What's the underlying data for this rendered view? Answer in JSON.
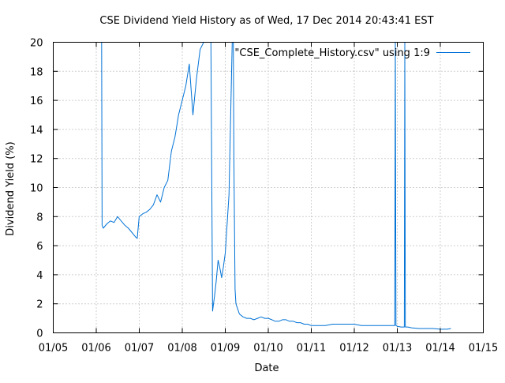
{
  "chart_data": {
    "type": "line",
    "title": "CSE Dividend Yield History as of Wed, 17 Dec 2014 20:43:41 EST",
    "xlabel": "Date",
    "ylabel": "Dividend Yield (%)",
    "x_tick_labels": [
      "01/05",
      "01/06",
      "01/07",
      "01/08",
      "01/09",
      "01/10",
      "01/11",
      "01/12",
      "01/13",
      "01/14",
      "01/15"
    ],
    "y_tick_labels": [
      "0",
      "2",
      "4",
      "6",
      "8",
      "10",
      "12",
      "14",
      "16",
      "18",
      "20"
    ],
    "xlim": [
      "2005-01-01",
      "2015-01-01"
    ],
    "ylim": [
      0,
      20
    ],
    "grid": true,
    "legend_position": "top-right",
    "series": [
      {
        "name": "\"CSE_Complete_History.csv\" using 1:9",
        "color": "#0072d6",
        "x": [
          "2006-02-15",
          "2006-02-16",
          "2006-02-20",
          "2006-03-01",
          "2006-04-01",
          "2006-05-01",
          "2006-06-01",
          "2006-07-01",
          "2006-08-01",
          "2006-09-01",
          "2006-10-01",
          "2006-11-01",
          "2006-12-01",
          "2006-12-15",
          "2007-01-01",
          "2007-02-01",
          "2007-03-01",
          "2007-04-01",
          "2007-05-01",
          "2007-06-01",
          "2007-07-01",
          "2007-08-01",
          "2007-09-01",
          "2007-10-01",
          "2007-11-01",
          "2007-12-01",
          "2008-01-01",
          "2008-02-01",
          "2008-03-01",
          "2008-04-01",
          "2008-05-01",
          "2008-06-01",
          "2008-07-01",
          "2008-08-01",
          "2008-08-25",
          "2008-09-01",
          "2008-09-15",
          "2008-10-01",
          "2008-10-15",
          "2008-11-01",
          "2008-11-15",
          "2008-12-01",
          "2008-12-15",
          "2009-01-01",
          "2009-02-01",
          "2009-03-01",
          "2009-03-10",
          "2009-03-15",
          "2009-03-25",
          "2009-04-01",
          "2009-05-01",
          "2009-06-01",
          "2009-07-01",
          "2009-08-01",
          "2009-09-01",
          "2009-10-01",
          "2009-11-01",
          "2009-12-01",
          "2010-01-01",
          "2010-02-01",
          "2010-03-01",
          "2010-04-01",
          "2010-05-01",
          "2010-06-01",
          "2010-07-01",
          "2010-08-01",
          "2010-09-01",
          "2010-10-01",
          "2010-11-01",
          "2010-12-01",
          "2011-01-01",
          "2011-03-01",
          "2011-05-01",
          "2011-07-01",
          "2011-09-01",
          "2011-11-01",
          "2012-01-01",
          "2012-03-01",
          "2012-05-01",
          "2012-07-01",
          "2012-09-01",
          "2012-11-01",
          "2012-12-10",
          "2012-12-15",
          "2012-12-20",
          "2013-01-01",
          "2013-02-01",
          "2013-03-01",
          "2013-03-05",
          "2013-03-10",
          "2013-04-01",
          "2013-05-01",
          "2013-07-01",
          "2013-09-01",
          "2013-11-01",
          "2014-01-01",
          "2014-03-01",
          "2014-04-01"
        ],
        "y": [
          20,
          20,
          7.4,
          7.2,
          7.5,
          7.7,
          7.6,
          8.0,
          7.7,
          7.4,
          7.2,
          6.9,
          6.6,
          6.5,
          8.0,
          8.2,
          8.3,
          8.5,
          8.8,
          9.5,
          9.0,
          10.0,
          10.5,
          12.5,
          13.5,
          15.0,
          16.0,
          17.0,
          18.5,
          15.0,
          17.5,
          19.5,
          20,
          20,
          20,
          20,
          1.5,
          2.5,
          3.5,
          5.0,
          4.5,
          3.8,
          4.5,
          5.5,
          9.5,
          20,
          20,
          12.0,
          3.0,
          2.0,
          1.3,
          1.1,
          1.0,
          1.0,
          0.9,
          1.0,
          1.1,
          1.0,
          1.0,
          0.9,
          0.8,
          0.8,
          0.9,
          0.9,
          0.8,
          0.8,
          0.7,
          0.7,
          0.6,
          0.6,
          0.5,
          0.5,
          0.5,
          0.6,
          0.6,
          0.6,
          0.6,
          0.5,
          0.5,
          0.5,
          0.5,
          0.5,
          0.5,
          20,
          0.5,
          0.45,
          0.4,
          0.4,
          20,
          0.4,
          0.4,
          0.35,
          0.3,
          0.3,
          0.3,
          0.25,
          0.25,
          0.3
        ]
      }
    ]
  }
}
